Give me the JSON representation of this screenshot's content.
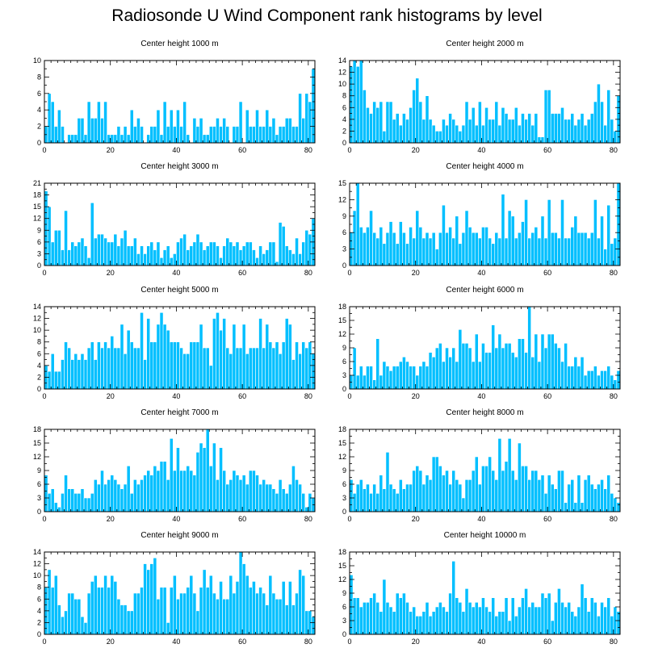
{
  "figure": {
    "title": "Radiosonde U Wind Component rank histograms by level",
    "bar_color": "#00bfff",
    "bar_edge_color": "#ffffff",
    "axis_color": "#000000"
  },
  "chart_data": [
    {
      "type": "bar",
      "title": "Center height 1000 m",
      "xlim": [
        0,
        82
      ],
      "ylim": [
        0,
        10
      ],
      "xticks": [
        0,
        20,
        40,
        60,
        80
      ],
      "yticks": [
        0,
        2,
        4,
        6,
        8,
        10
      ],
      "values": [
        2,
        6,
        5,
        2,
        4,
        2,
        0,
        1,
        1,
        1,
        3,
        3,
        1,
        5,
        3,
        3,
        5,
        3,
        5,
        1,
        1,
        1,
        2,
        1,
        2,
        1,
        4,
        2,
        3,
        2,
        0,
        1,
        2,
        2,
        4,
        1,
        5,
        2,
        4,
        2,
        4,
        2,
        5,
        1,
        0,
        3,
        2,
        3,
        1,
        1,
        2,
        2,
        3,
        2,
        3,
        2,
        0,
        2,
        2,
        5,
        0,
        4,
        2,
        2,
        4,
        2,
        2,
        4,
        2,
        3,
        1,
        2,
        2,
        3,
        3,
        2,
        2,
        6,
        3,
        6,
        5,
        9
      ]
    },
    {
      "type": "bar",
      "title": "Center height 2000 m",
      "xlim": [
        0,
        82
      ],
      "ylim": [
        0,
        14
      ],
      "xticks": [
        0,
        20,
        40,
        60,
        80
      ],
      "yticks": [
        0,
        2,
        4,
        6,
        8,
        10,
        12,
        14
      ],
      "values": [
        13,
        14,
        13,
        14,
        9,
        6,
        5,
        7,
        6,
        7,
        2,
        7,
        7,
        4,
        5,
        3,
        5,
        4,
        6,
        9,
        11,
        7,
        4,
        8,
        4,
        3,
        2,
        2,
        4,
        3,
        5,
        4,
        3,
        2,
        3,
        7,
        4,
        6,
        3,
        7,
        3,
        6,
        4,
        4,
        7,
        3,
        6,
        5,
        4,
        4,
        6,
        3,
        5,
        4,
        5,
        3,
        5,
        1,
        1,
        9,
        9,
        5,
        5,
        5,
        6,
        4,
        4,
        5,
        3,
        4,
        5,
        3,
        4,
        5,
        7,
        10,
        7,
        3,
        9,
        4,
        2,
        8
      ]
    },
    {
      "type": "bar",
      "title": "Center height 3000 m",
      "xlim": [
        0,
        82
      ],
      "ylim": [
        0,
        21
      ],
      "xticks": [
        0,
        20,
        40,
        60,
        80
      ],
      "yticks": [
        0,
        3,
        6,
        9,
        12,
        15,
        18,
        21
      ],
      "values": [
        19,
        15,
        6,
        9,
        9,
        4,
        14,
        4,
        6,
        5,
        6,
        7,
        5,
        2,
        16,
        7,
        8,
        8,
        7,
        6,
        6,
        8,
        5,
        7,
        9,
        5,
        5,
        7,
        3,
        5,
        3,
        5,
        6,
        4,
        6,
        2,
        4,
        5,
        2,
        3,
        6,
        7,
        8,
        4,
        5,
        6,
        8,
        6,
        4,
        5,
        6,
        6,
        5,
        2,
        5,
        7,
        6,
        5,
        6,
        4,
        5,
        6,
        6,
        4,
        2,
        5,
        3,
        4,
        6,
        6,
        1,
        11,
        10,
        5,
        4,
        3,
        7,
        3,
        6,
        9,
        8,
        12
      ]
    },
    {
      "type": "bar",
      "title": "Center height 4000 m",
      "xlim": [
        0,
        82
      ],
      "ylim": [
        0,
        15
      ],
      "xticks": [
        0,
        20,
        40,
        60,
        80
      ],
      "yticks": [
        0,
        3,
        6,
        9,
        12,
        15
      ],
      "values": [
        6,
        10,
        15,
        7,
        6,
        7,
        10,
        6,
        5,
        7,
        4,
        6,
        8,
        6,
        4,
        8,
        6,
        4,
        7,
        5,
        10,
        7,
        5,
        6,
        5,
        6,
        3,
        6,
        11,
        6,
        7,
        5,
        9,
        4,
        6,
        10,
        7,
        6,
        6,
        5,
        7,
        7,
        5,
        4,
        6,
        5,
        13,
        5,
        10,
        9,
        5,
        6,
        8,
        12,
        5,
        6,
        7,
        5,
        9,
        5,
        12,
        6,
        6,
        5,
        12,
        5,
        5,
        7,
        9,
        6,
        6,
        6,
        5,
        6,
        12,
        5,
        9,
        3,
        11,
        4,
        5,
        15
      ]
    },
    {
      "type": "bar",
      "title": "Center height 5000 m",
      "xlim": [
        0,
        82
      ],
      "ylim": [
        0,
        14
      ],
      "xticks": [
        0,
        20,
        40,
        60,
        80
      ],
      "yticks": [
        0,
        2,
        4,
        6,
        8,
        10,
        12,
        14
      ],
      "values": [
        4,
        3,
        6,
        3,
        3,
        5,
        8,
        7,
        5,
        6,
        5,
        6,
        5,
        7,
        8,
        5,
        8,
        7,
        8,
        7,
        9,
        7,
        7,
        11,
        6,
        10,
        8,
        7,
        7,
        13,
        5,
        12,
        8,
        8,
        11,
        13,
        11,
        10,
        8,
        8,
        8,
        7,
        6,
        6,
        8,
        8,
        8,
        11,
        7,
        7,
        4,
        12,
        13,
        10,
        12,
        7,
        6,
        11,
        7,
        7,
        11,
        6,
        7,
        7,
        7,
        12,
        7,
        11,
        8,
        7,
        8,
        6,
        8,
        12,
        11,
        5,
        8,
        6,
        8,
        7,
        8,
        6
      ]
    },
    {
      "type": "bar",
      "title": "Center height 6000 m",
      "xlim": [
        0,
        82
      ],
      "ylim": [
        0,
        18
      ],
      "xticks": [
        0,
        20,
        40,
        60,
        80
      ],
      "yticks": [
        0,
        3,
        6,
        9,
        12,
        15,
        18
      ],
      "values": [
        3,
        9,
        3,
        5,
        3,
        5,
        5,
        2,
        11,
        3,
        6,
        5,
        4,
        5,
        5,
        6,
        7,
        6,
        5,
        5,
        3,
        5,
        6,
        5,
        8,
        7,
        9,
        10,
        6,
        9,
        7,
        9,
        6,
        13,
        10,
        10,
        9,
        6,
        12,
        6,
        10,
        8,
        8,
        14,
        9,
        12,
        9,
        10,
        10,
        8,
        7,
        11,
        11,
        8,
        18,
        7,
        12,
        6,
        12,
        9,
        12,
        12,
        10,
        9,
        6,
        10,
        5,
        5,
        7,
        5,
        7,
        3,
        4,
        4,
        5,
        3,
        4,
        4,
        5,
        3,
        2,
        4
      ]
    },
    {
      "type": "bar",
      "title": "Center height 7000 m",
      "xlim": [
        0,
        82
      ],
      "ylim": [
        0,
        18
      ],
      "xticks": [
        0,
        20,
        40,
        60,
        80
      ],
      "yticks": [
        0,
        3,
        6,
        9,
        12,
        15,
        18
      ],
      "values": [
        8,
        4,
        5,
        2,
        1,
        4,
        8,
        5,
        5,
        4,
        4,
        5,
        3,
        3,
        4,
        7,
        6,
        9,
        6,
        7,
        8,
        7,
        6,
        5,
        6,
        10,
        4,
        7,
        6,
        7,
        8,
        9,
        8,
        10,
        9,
        11,
        11,
        7,
        16,
        9,
        14,
        9,
        9,
        10,
        9,
        8,
        13,
        15,
        14,
        18,
        10,
        15,
        7,
        14,
        9,
        6,
        7,
        9,
        8,
        7,
        8,
        6,
        9,
        9,
        8,
        6,
        7,
        6,
        6,
        5,
        4,
        7,
        5,
        4,
        6,
        10,
        7,
        6,
        4,
        1,
        4,
        3
      ]
    },
    {
      "type": "bar",
      "title": "Center height 8000 m",
      "xlim": [
        0,
        82
      ],
      "ylim": [
        0,
        18
      ],
      "xticks": [
        0,
        20,
        40,
        60,
        80
      ],
      "yticks": [
        0,
        3,
        6,
        9,
        12,
        15,
        18
      ],
      "values": [
        7,
        4,
        6,
        7,
        5,
        6,
        4,
        6,
        4,
        8,
        5,
        13,
        6,
        5,
        4,
        7,
        5,
        6,
        6,
        9,
        10,
        9,
        6,
        8,
        7,
        12,
        12,
        10,
        8,
        9,
        6,
        9,
        7,
        6,
        3,
        7,
        7,
        9,
        12,
        6,
        10,
        10,
        12,
        9,
        7,
        16,
        9,
        11,
        16,
        9,
        7,
        15,
        10,
        10,
        7,
        9,
        9,
        7,
        8,
        4,
        8,
        6,
        5,
        9,
        9,
        2,
        6,
        7,
        2,
        8,
        2,
        7,
        8,
        6,
        5,
        6,
        7,
        5,
        8,
        4,
        3,
        2
      ]
    },
    {
      "type": "bar",
      "title": "Center height 9000 m",
      "xlim": [
        0,
        82
      ],
      "ylim": [
        0,
        14
      ],
      "xticks": [
        0,
        20,
        40,
        60,
        80
      ],
      "yticks": [
        0,
        2,
        4,
        6,
        8,
        10,
        12,
        14
      ],
      "values": [
        8,
        11,
        8,
        10,
        5,
        3,
        4,
        7,
        7,
        6,
        6,
        3,
        2,
        7,
        9,
        10,
        8,
        8,
        10,
        8,
        10,
        9,
        6,
        5,
        5,
        4,
        4,
        7,
        7,
        8,
        12,
        11,
        12,
        13,
        6,
        8,
        8,
        2,
        8,
        10,
        6,
        7,
        7,
        8,
        10,
        7,
        4,
        8,
        11,
        8,
        10,
        7,
        6,
        9,
        6,
        6,
        10,
        7,
        9,
        14,
        12,
        10,
        8,
        9,
        7,
        8,
        7,
        5,
        10,
        7,
        6,
        6,
        9,
        5,
        9,
        5,
        7,
        11,
        10,
        4,
        4,
        3
      ]
    },
    {
      "type": "bar",
      "title": "Center height 10000 m",
      "xlim": [
        0,
        82
      ],
      "ylim": [
        0,
        18
      ],
      "xticks": [
        0,
        20,
        40,
        60,
        80
      ],
      "yticks": [
        0,
        3,
        6,
        9,
        12,
        15,
        18
      ],
      "values": [
        13,
        8,
        8,
        6,
        7,
        7,
        8,
        9,
        7,
        5,
        12,
        7,
        6,
        5,
        9,
        8,
        9,
        7,
        5,
        6,
        4,
        4,
        5,
        7,
        4,
        5,
        6,
        7,
        6,
        5,
        9,
        16,
        8,
        7,
        5,
        10,
        7,
        6,
        7,
        6,
        8,
        6,
        5,
        8,
        4,
        5,
        5,
        8,
        3,
        8,
        4,
        6,
        8,
        10,
        6,
        7,
        6,
        6,
        9,
        8,
        9,
        3,
        7,
        10,
        7,
        6,
        7,
        5,
        4,
        6,
        11,
        8,
        5,
        8,
        7,
        4,
        7,
        6,
        8,
        4,
        6,
        5
      ]
    }
  ]
}
